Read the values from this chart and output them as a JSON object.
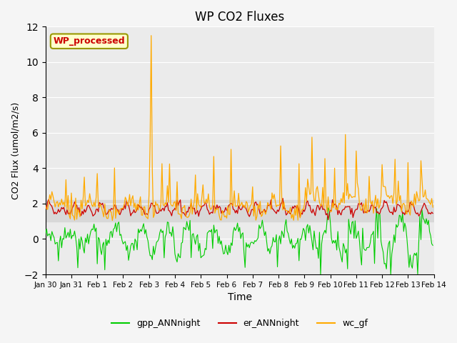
{
  "title": "WP CO2 Fluxes",
  "xlabel": "Time",
  "ylabel_raw": "CO2 Flux (umol/m2/s)",
  "ylim": [
    -2,
    12
  ],
  "yticks": [
    -2,
    0,
    2,
    4,
    6,
    8,
    10,
    12
  ],
  "xtick_positions": [
    0,
    1,
    2,
    3,
    4,
    5,
    6,
    7,
    8,
    9,
    10,
    11,
    12,
    13,
    14,
    15
  ],
  "xtick_labels": [
    "Jan 30",
    "Jan 31",
    "Feb 1",
    "Feb 2",
    "Feb 3",
    "Feb 4",
    "Feb 5",
    "Feb 6",
    "Feb 7",
    "Feb 8",
    "Feb 9",
    "Feb 10",
    "Feb 11",
    "Feb 12",
    "Feb 13",
    "Feb 14"
  ],
  "xlim": [
    0,
    15
  ],
  "legend_labels": [
    "gpp_ANNnight",
    "er_ANNnight",
    "wc_gf"
  ],
  "line_colors": [
    "#00cc00",
    "#cc0000",
    "#ffaa00"
  ],
  "annotation_text": "WP_processed",
  "annotation_color": "#cc0000",
  "annotation_bg": "#ffffcc",
  "annotation_edge": "#999900",
  "shaded_region": [
    1.0,
    2.2
  ],
  "shaded_color": "#d8d8d8",
  "background_color": "#ebebeb",
  "fig_facecolor": "#f5f5f5",
  "n_points": 360,
  "seed": 42,
  "spike_day": 4.1,
  "spike_value": 11.5
}
